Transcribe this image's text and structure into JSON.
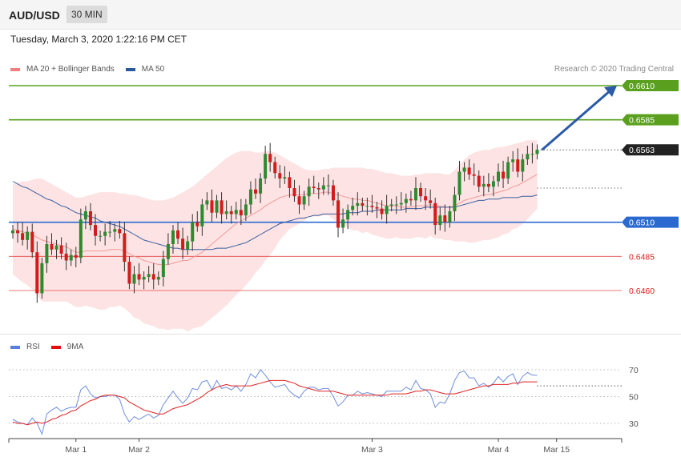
{
  "header": {
    "symbol": "AUD/USD",
    "timeframe": "30 MIN"
  },
  "datetime": "Tuesday, March 3, 2020 1:22:16 PM CET",
  "credit": "Research © 2020 Trading Central",
  "legend": [
    {
      "label": "MA 20 + Bollinger Bands",
      "color": "#f08080"
    },
    {
      "label": "MA 50",
      "color": "#2a5a9c"
    }
  ],
  "rsi_legend": [
    {
      "label": "RSI",
      "color": "#5b7fd6"
    },
    {
      "label": "9MA",
      "color": "#e01010"
    }
  ],
  "chart_data": [
    {
      "type": "candlestick",
      "yrange": [
        0.644,
        0.662
      ],
      "levels": [
        {
          "label": "0.6610",
          "value": 0.661,
          "color": "#5aa01e",
          "kind": "resistance"
        },
        {
          "label": "0.6585",
          "value": 0.6585,
          "color": "#5aa01e",
          "kind": "resistance"
        },
        {
          "label": "0.6563",
          "value": 0.6563,
          "color": "#222222",
          "kind": "last"
        },
        {
          "label": "0.6510",
          "value": 0.651,
          "color": "#2a6ad0",
          "kind": "pivot"
        },
        {
          "label": "0.6485",
          "value": 0.6485,
          "color": "#e02020",
          "kind": "support"
        },
        {
          "label": "0.6460",
          "value": 0.646,
          "color": "#e02020",
          "kind": "support"
        }
      ],
      "close": [
        0.6504,
        0.6502,
        0.6497,
        0.6503,
        0.6488,
        0.6458,
        0.648,
        0.6494,
        0.649,
        0.6493,
        0.6487,
        0.6482,
        0.6486,
        0.6484,
        0.6512,
        0.6518,
        0.6508,
        0.65,
        0.65,
        0.6503,
        0.6503,
        0.6505,
        0.6502,
        0.6481,
        0.6465,
        0.6472,
        0.6468,
        0.647,
        0.6472,
        0.6468,
        0.647,
        0.6483,
        0.6494,
        0.6504,
        0.6498,
        0.649,
        0.6496,
        0.651,
        0.6507,
        0.6523,
        0.6526,
        0.6517,
        0.6526,
        0.6516,
        0.6518,
        0.6516,
        0.6519,
        0.6515,
        0.6523,
        0.6534,
        0.6531,
        0.6542,
        0.656,
        0.6554,
        0.6546,
        0.6542,
        0.6543,
        0.6535,
        0.6529,
        0.6523,
        0.6529,
        0.6536,
        0.6535,
        0.6534,
        0.6537,
        0.6537,
        0.6526,
        0.6506,
        0.6512,
        0.6519,
        0.6522,
        0.6524,
        0.6522,
        0.6522,
        0.6521,
        0.652,
        0.6516,
        0.6522,
        0.6523,
        0.6523,
        0.6524,
        0.6527,
        0.6526,
        0.6535,
        0.6529,
        0.6526,
        0.6524,
        0.6508,
        0.6515,
        0.651,
        0.6518,
        0.653,
        0.6547,
        0.655,
        0.6545,
        0.6544,
        0.6536,
        0.6538,
        0.6536,
        0.654,
        0.6547,
        0.6542,
        0.6554,
        0.6556,
        0.6547,
        0.6556,
        0.656,
        0.656,
        0.6563
      ],
      "open": [
        0.6502,
        0.6504,
        0.6502,
        0.6497,
        0.6503,
        0.6488,
        0.6458,
        0.648,
        0.6494,
        0.649,
        0.6493,
        0.6487,
        0.6482,
        0.6486,
        0.6484,
        0.6512,
        0.6518,
        0.6508,
        0.65,
        0.65,
        0.6503,
        0.6503,
        0.6505,
        0.6502,
        0.6481,
        0.6465,
        0.6472,
        0.6468,
        0.647,
        0.6472,
        0.6468,
        0.647,
        0.6483,
        0.6494,
        0.6504,
        0.6498,
        0.649,
        0.6496,
        0.651,
        0.6507,
        0.6523,
        0.6526,
        0.6517,
        0.6526,
        0.6516,
        0.6518,
        0.6516,
        0.6519,
        0.6515,
        0.6523,
        0.6534,
        0.6531,
        0.6542,
        0.656,
        0.6554,
        0.6546,
        0.6542,
        0.6543,
        0.6535,
        0.6529,
        0.6523,
        0.6529,
        0.6536,
        0.6535,
        0.6534,
        0.6537,
        0.6537,
        0.6526,
        0.6506,
        0.6512,
        0.6519,
        0.6522,
        0.6524,
        0.6522,
        0.6522,
        0.6521,
        0.652,
        0.6516,
        0.6522,
        0.6523,
        0.6523,
        0.6524,
        0.6527,
        0.6526,
        0.6535,
        0.6529,
        0.6526,
        0.6524,
        0.6508,
        0.6515,
        0.651,
        0.6518,
        0.653,
        0.6547,
        0.655,
        0.6545,
        0.6544,
        0.6536,
        0.6538,
        0.6536,
        0.654,
        0.6547,
        0.6542,
        0.6554,
        0.6556,
        0.6547,
        0.6556,
        0.656,
        0.656
      ],
      "ma20": [
        0.6505,
        0.6504,
        0.6503,
        0.6502,
        0.6501,
        0.6499,
        0.6497,
        0.6496,
        0.6495,
        0.6494,
        0.6493,
        0.6492,
        0.649,
        0.6488,
        0.6488,
        0.6489,
        0.6489,
        0.6489,
        0.6489,
        0.6489,
        0.649,
        0.649,
        0.649,
        0.6489,
        0.6487,
        0.6485,
        0.6484,
        0.6482,
        0.6481,
        0.648,
        0.6479,
        0.6479,
        0.6479,
        0.648,
        0.6481,
        0.6482,
        0.6482,
        0.6484,
        0.6486,
        0.6488,
        0.6491,
        0.6494,
        0.6497,
        0.65,
        0.6503,
        0.6506,
        0.6509,
        0.6511,
        0.6513,
        0.6515,
        0.6517,
        0.6519,
        0.6522,
        0.6524,
        0.6526,
        0.6528,
        0.6529,
        0.653,
        0.653,
        0.653,
        0.653,
        0.6531,
        0.6531,
        0.6531,
        0.6532,
        0.6532,
        0.6531,
        0.653,
        0.6529,
        0.6528,
        0.6527,
        0.6527,
        0.6526,
        0.6526,
        0.6525,
        0.6524,
        0.6523,
        0.6522,
        0.6522,
        0.6522,
        0.6521,
        0.6521,
        0.6521,
        0.6522,
        0.6522,
        0.6522,
        0.6523,
        0.6522,
        0.6522,
        0.6521,
        0.6521,
        0.6522,
        0.6524,
        0.6526,
        0.6527,
        0.6528,
        0.6529,
        0.653,
        0.653,
        0.6531,
        0.6532,
        0.6533,
        0.6534,
        0.6536,
        0.6537,
        0.6539,
        0.6541,
        0.6543,
        0.6545
      ],
      "upper": [
        0.6538,
        0.6539,
        0.654,
        0.654,
        0.6541,
        0.6542,
        0.6542,
        0.654,
        0.6538,
        0.6536,
        0.6534,
        0.6532,
        0.653,
        0.6528,
        0.6528,
        0.6529,
        0.653,
        0.6531,
        0.6532,
        0.6532,
        0.6532,
        0.6532,
        0.6531,
        0.6531,
        0.653,
        0.653,
        0.6529,
        0.6528,
        0.6527,
        0.6526,
        0.6526,
        0.6526,
        0.6527,
        0.6528,
        0.653,
        0.6532,
        0.6534,
        0.6536,
        0.6539,
        0.6542,
        0.6545,
        0.6548,
        0.6551,
        0.6554,
        0.6557,
        0.6559,
        0.6561,
        0.6562,
        0.6562,
        0.6562,
        0.6561,
        0.6561,
        0.6562,
        0.6562,
        0.6561,
        0.6559,
        0.6557,
        0.6555,
        0.6553,
        0.6551,
        0.6549,
        0.6548,
        0.6548,
        0.6548,
        0.6549,
        0.6549,
        0.655,
        0.655,
        0.655,
        0.655,
        0.655,
        0.655,
        0.655,
        0.6549,
        0.6549,
        0.6548,
        0.6547,
        0.6546,
        0.6546,
        0.6545,
        0.6544,
        0.6544,
        0.6544,
        0.6545,
        0.6545,
        0.6546,
        0.6546,
        0.6546,
        0.6546,
        0.6545,
        0.6545,
        0.6548,
        0.6552,
        0.6556,
        0.6559,
        0.6561,
        0.6562,
        0.6563,
        0.6563,
        0.6564,
        0.6565,
        0.6565,
        0.6566,
        0.6567,
        0.6568,
        0.6569,
        0.657,
        0.657,
        0.657
      ],
      "lower": [
        0.6472,
        0.6469,
        0.6466,
        0.6464,
        0.6461,
        0.6456,
        0.6452,
        0.6452,
        0.6452,
        0.6452,
        0.6452,
        0.6452,
        0.645,
        0.6448,
        0.6448,
        0.6449,
        0.6448,
        0.6447,
        0.6446,
        0.6446,
        0.6448,
        0.6448,
        0.6449,
        0.6447,
        0.6444,
        0.644,
        0.6439,
        0.6436,
        0.6435,
        0.6434,
        0.6432,
        0.6432,
        0.6431,
        0.6432,
        0.6432,
        0.6432,
        0.643,
        0.6432,
        0.6433,
        0.6434,
        0.6437,
        0.644,
        0.6443,
        0.6446,
        0.6449,
        0.6453,
        0.6457,
        0.646,
        0.6464,
        0.6468,
        0.6473,
        0.6477,
        0.6482,
        0.6486,
        0.6491,
        0.6497,
        0.6501,
        0.6505,
        0.6507,
        0.6509,
        0.6511,
        0.6514,
        0.6514,
        0.6514,
        0.6515,
        0.6515,
        0.6512,
        0.651,
        0.6508,
        0.6506,
        0.6504,
        0.6504,
        0.6502,
        0.6503,
        0.6501,
        0.65,
        0.6499,
        0.6498,
        0.6498,
        0.6499,
        0.6498,
        0.6498,
        0.6498,
        0.6499,
        0.6499,
        0.6498,
        0.65,
        0.6498,
        0.6498,
        0.6497,
        0.6497,
        0.6496,
        0.6496,
        0.6496,
        0.6495,
        0.6495,
        0.6496,
        0.6497,
        0.6497,
        0.6498,
        0.6499,
        0.6501,
        0.6502,
        0.6505,
        0.6506,
        0.6509,
        0.6512,
        0.6516,
        0.652
      ],
      "ma50": [
        0.654,
        0.6538,
        0.6536,
        0.6535,
        0.6533,
        0.6531,
        0.6529,
        0.6527,
        0.6526,
        0.6524,
        0.6522,
        0.6521,
        0.6519,
        0.6517,
        0.6516,
        0.6515,
        0.6514,
        0.6513,
        0.6511,
        0.651,
        0.6509,
        0.6508,
        0.6507,
        0.6505,
        0.6503,
        0.6501,
        0.6499,
        0.6497,
        0.6496,
        0.6495,
        0.6494,
        0.6493,
        0.6492,
        0.6491,
        0.6491,
        0.649,
        0.649,
        0.649,
        0.649,
        0.649,
        0.649,
        0.649,
        0.6491,
        0.6491,
        0.6491,
        0.6492,
        0.6493,
        0.6494,
        0.6495,
        0.6497,
        0.6499,
        0.6501,
        0.6503,
        0.6505,
        0.6507,
        0.6509,
        0.651,
        0.6511,
        0.6512,
        0.6513,
        0.6513,
        0.6514,
        0.6515,
        0.6515,
        0.6516,
        0.6516,
        0.6516,
        0.6516,
        0.6516,
        0.6517,
        0.6517,
        0.6517,
        0.6518,
        0.6518,
        0.6518,
        0.6519,
        0.6519,
        0.6519,
        0.6519,
        0.6519,
        0.6519,
        0.652,
        0.652,
        0.652,
        0.652,
        0.6521,
        0.6521,
        0.6521,
        0.6521,
        0.6521,
        0.6521,
        0.6521,
        0.6522,
        0.6523,
        0.6524,
        0.6525,
        0.6526,
        0.6526,
        0.6527,
        0.6527,
        0.6527,
        0.6528,
        0.6528,
        0.6528,
        0.6528,
        0.6529,
        0.6529,
        0.6529,
        0.653
      ],
      "arrow": {
        "from_value": 0.6563,
        "to_value": 0.661
      }
    },
    {
      "type": "line",
      "yrange": [
        20,
        80
      ],
      "ticks": [
        30,
        50,
        70
      ],
      "reference_value": 58,
      "rsi": [
        33,
        31,
        30,
        29,
        34,
        30,
        22,
        37,
        40,
        42,
        39,
        41,
        42,
        42,
        55,
        58,
        52,
        49,
        50,
        50,
        51,
        51,
        48,
        37,
        31,
        35,
        33,
        35,
        37,
        34,
        36,
        44,
        49,
        54,
        49,
        45,
        49,
        56,
        55,
        61,
        62,
        55,
        62,
        56,
        57,
        55,
        58,
        54,
        59,
        67,
        64,
        70,
        66,
        61,
        57,
        58,
        59,
        54,
        51,
        49,
        54,
        57,
        57,
        55,
        56,
        56,
        50,
        43,
        46,
        51,
        51,
        54,
        52,
        53,
        52,
        51,
        50,
        54,
        54,
        54,
        54,
        57,
        55,
        62,
        56,
        55,
        52,
        42,
        46,
        45,
        52,
        62,
        68,
        69,
        64,
        64,
        58,
        60,
        57,
        60,
        65,
        61,
        65,
        67,
        59,
        65,
        68,
        66,
        66
      ],
      "ma9": [
        31,
        30,
        30,
        29,
        30,
        31,
        30,
        31,
        33,
        34,
        36,
        37,
        39,
        40,
        43,
        45,
        47,
        48,
        50,
        51,
        51,
        51,
        50,
        49,
        46,
        44,
        42,
        40,
        39,
        38,
        37,
        37,
        39,
        41,
        42,
        43,
        44,
        46,
        48,
        50,
        53,
        55,
        57,
        58,
        59,
        58,
        58,
        58,
        58,
        58,
        59,
        60,
        61,
        62,
        62,
        62,
        62,
        61,
        60,
        58,
        57,
        56,
        55,
        54,
        54,
        54,
        54,
        53,
        52,
        51,
        51,
        51,
        51,
        51,
        51,
        51,
        51,
        51,
        52,
        52,
        52,
        52,
        53,
        54,
        54,
        55,
        55,
        54,
        53,
        52,
        52,
        52,
        53,
        54,
        55,
        56,
        57,
        58,
        58,
        59,
        59,
        59,
        59,
        60,
        60,
        61,
        61,
        61,
        61
      ]
    }
  ],
  "xaxis": {
    "labels": [
      {
        "label": "Mar 1",
        "bar": 13
      },
      {
        "label": "Mar 2",
        "bar": 26
      },
      {
        "label": "Mar 3",
        "bar": 74
      },
      {
        "label": "Mar 4",
        "bar": 100
      },
      {
        "label": "Mar 15",
        "bar": 112
      }
    ]
  },
  "colors": {
    "bull": "#2f8a2f",
    "bear": "#d21c1c",
    "band_fill": "#fde0e0",
    "ma20": "#f29a9a",
    "ma50": "#3b5fa0",
    "rsi": "#6f8ee0",
    "ma9": "#e02020",
    "arrow": "#2a5aa8"
  }
}
